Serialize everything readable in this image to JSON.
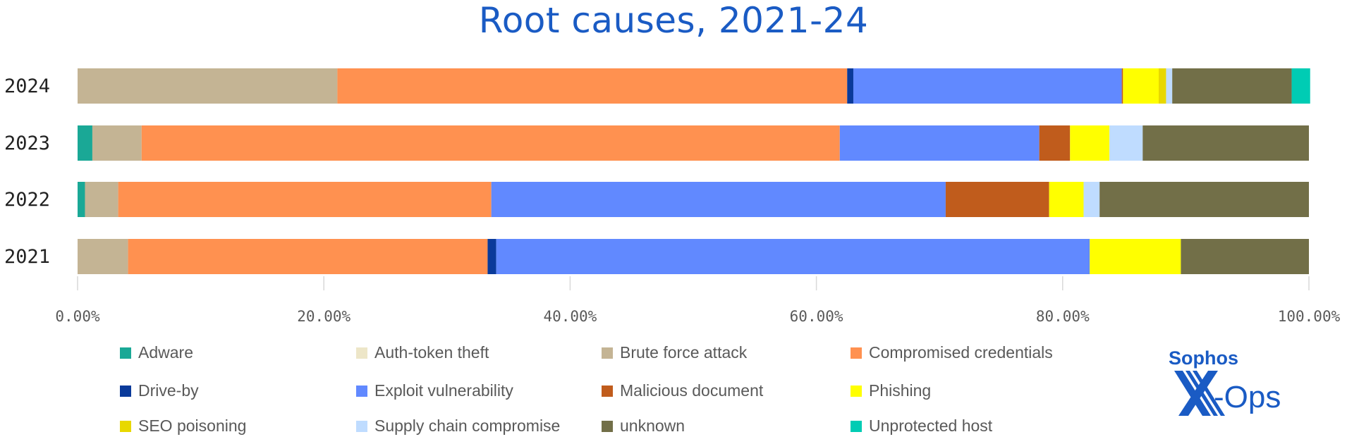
{
  "chart_data": {
    "type": "bar",
    "orientation": "horizontal",
    "stacked": true,
    "title": "Root causes, 2021-24",
    "categories": [
      "2024",
      "2023",
      "2022",
      "2021"
    ],
    "xlim": [
      0,
      100
    ],
    "xticks": [
      "0.00%",
      "20.00%",
      "40.00%",
      "60.00%",
      "80.00%",
      "100.00%"
    ],
    "legend_position": "bottom",
    "series": [
      {
        "name": "Adware",
        "color": "#1aa896",
        "values": [
          0,
          1.2,
          0.6,
          0
        ]
      },
      {
        "name": "Auth-token theft",
        "color": "#ede6c8",
        "values": [
          0,
          0,
          0,
          0
        ]
      },
      {
        "name": "Brute force attack",
        "color": "#c4b494",
        "values": [
          21.1,
          4.0,
          2.7,
          4.1
        ]
      },
      {
        "name": "Compromised credentials",
        "color": "#ff9150",
        "values": [
          41.4,
          56.7,
          30.3,
          29.2
        ]
      },
      {
        "name": "Drive-by",
        "color": "#0a3a9a",
        "values": [
          0.5,
          0,
          0,
          0.7
        ]
      },
      {
        "name": "Exploit vulnerability",
        "color": "#6189ff",
        "values": [
          21.8,
          16.2,
          36.9,
          48.2
        ]
      },
      {
        "name": "Malicious document",
        "color": "#c05c1c",
        "values": [
          0.1,
          2.5,
          8.4,
          0
        ]
      },
      {
        "name": "Phishing",
        "color": "#ffff00",
        "values": [
          2.9,
          3.2,
          2.8,
          7.4
        ]
      },
      {
        "name": "SEO poisoning",
        "color": "#e8d800",
        "values": [
          0.6,
          0,
          0,
          0
        ]
      },
      {
        "name": "Supply chain compromise",
        "color": "#bfdcff",
        "values": [
          0.5,
          2.7,
          1.3,
          0
        ]
      },
      {
        "name": "unknown",
        "color": "#726f48",
        "values": [
          9.7,
          13.5,
          17.0,
          10.4
        ]
      },
      {
        "name": "Unprotected host",
        "color": "#00ccb4",
        "values": [
          1.5,
          0,
          0,
          0
        ]
      }
    ]
  },
  "logo": {
    "text_top": "Sophos",
    "text_bottom": "X-Ops",
    "color": "#1a5bc4"
  }
}
